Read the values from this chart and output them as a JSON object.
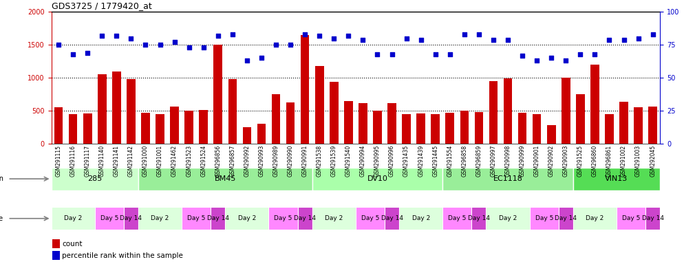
{
  "title": "GDS3725 / 1779420_at",
  "samples": [
    "GSM291115",
    "GSM291116",
    "GSM291117",
    "GSM291140",
    "GSM291141",
    "GSM291142",
    "GSM291000",
    "GSM291001",
    "GSM291462",
    "GSM291523",
    "GSM291524",
    "GSM296856",
    "GSM296857",
    "GSM290992",
    "GSM290993",
    "GSM290989",
    "GSM290990",
    "GSM290991",
    "GSM291538",
    "GSM291539",
    "GSM291540",
    "GSM290994",
    "GSM290995",
    "GSM290996",
    "GSM291435",
    "GSM291439",
    "GSM291445",
    "GSM291554",
    "GSM296858",
    "GSM296859",
    "GSM290997",
    "GSM290998",
    "GSM290999",
    "GSM290901",
    "GSM290902",
    "GSM290903",
    "GSM291525",
    "GSM296860",
    "GSM296861",
    "GSM291002",
    "GSM291003",
    "GSM292045"
  ],
  "counts": [
    560,
    450,
    460,
    1050,
    1100,
    980,
    470,
    450,
    570,
    500,
    510,
    1500,
    980,
    250,
    300,
    750,
    630,
    1650,
    1180,
    940,
    650,
    620,
    500,
    620,
    450,
    460,
    450,
    470,
    500,
    480,
    950,
    990,
    470,
    450,
    280,
    1000,
    750,
    1200,
    450,
    640,
    550,
    570
  ],
  "percentile_ranks": [
    75,
    68,
    69,
    82,
    82,
    80,
    75,
    75,
    77,
    73,
    73,
    82,
    83,
    63,
    65,
    75,
    75,
    83,
    82,
    80,
    82,
    79,
    68,
    68,
    80,
    79,
    68,
    68,
    83,
    83,
    79,
    79,
    67,
    63,
    65,
    63,
    68,
    68,
    79,
    79,
    80,
    83
  ],
  "strains": [
    {
      "name": "285",
      "start": 0,
      "end": 6,
      "color": "#ccffcc"
    },
    {
      "name": "BM45",
      "start": 6,
      "end": 18,
      "color": "#99ee99"
    },
    {
      "name": "DV10",
      "start": 18,
      "end": 27,
      "color": "#aaffaa"
    },
    {
      "name": "EC1118",
      "start": 27,
      "end": 36,
      "color": "#99ee99"
    },
    {
      "name": "VIN13",
      "start": 36,
      "end": 42,
      "color": "#55dd55"
    }
  ],
  "times": [
    {
      "label": "Day 2",
      "start": 0,
      "end": 3,
      "color": "#ddffdd"
    },
    {
      "label": "Day 5",
      "start": 3,
      "end": 5,
      "color": "#ff88ff"
    },
    {
      "label": "Day 14",
      "start": 5,
      "end": 6,
      "color": "#cc44cc"
    },
    {
      "label": "Day 2",
      "start": 6,
      "end": 9,
      "color": "#ddffdd"
    },
    {
      "label": "Day 5",
      "start": 9,
      "end": 11,
      "color": "#ff88ff"
    },
    {
      "label": "Day 14",
      "start": 11,
      "end": 12,
      "color": "#cc44cc"
    },
    {
      "label": "Day 2",
      "start": 12,
      "end": 15,
      "color": "#ddffdd"
    },
    {
      "label": "Day 5",
      "start": 15,
      "end": 17,
      "color": "#ff88ff"
    },
    {
      "label": "Day 14",
      "start": 17,
      "end": 18,
      "color": "#cc44cc"
    },
    {
      "label": "Day 2",
      "start": 18,
      "end": 21,
      "color": "#ddffdd"
    },
    {
      "label": "Day 5",
      "start": 21,
      "end": 23,
      "color": "#ff88ff"
    },
    {
      "label": "Day 14",
      "start": 23,
      "end": 24,
      "color": "#cc44cc"
    },
    {
      "label": "Day 2",
      "start": 24,
      "end": 27,
      "color": "#ddffdd"
    },
    {
      "label": "Day 5",
      "start": 27,
      "end": 29,
      "color": "#ff88ff"
    },
    {
      "label": "Day 14",
      "start": 29,
      "end": 30,
      "color": "#cc44cc"
    },
    {
      "label": "Day 2",
      "start": 30,
      "end": 33,
      "color": "#ddffdd"
    },
    {
      "label": "Day 5",
      "start": 33,
      "end": 35,
      "color": "#ff88ff"
    },
    {
      "label": "Day 14",
      "start": 35,
      "end": 36,
      "color": "#cc44cc"
    },
    {
      "label": "Day 2",
      "start": 36,
      "end": 39,
      "color": "#ddffdd"
    },
    {
      "label": "Day 5",
      "start": 39,
      "end": 41,
      "color": "#ff88ff"
    },
    {
      "label": "Day 14",
      "start": 41,
      "end": 42,
      "color": "#cc44cc"
    }
  ],
  "ylim_left": [
    0,
    2000
  ],
  "ylim_right": [
    0,
    100
  ],
  "yticks_left": [
    0,
    500,
    1000,
    1500,
    2000
  ],
  "yticks_right": [
    0,
    25,
    50,
    75,
    100
  ],
  "bar_color": "#cc0000",
  "dot_color": "#0000cc",
  "bg_color": "#ffffff",
  "grid_color": "#000000",
  "title_color": "#000000",
  "left_axis_color": "#cc0000",
  "right_axis_color": "#0000cc",
  "label_area_color": "#cccccc",
  "xticklabel_bg": "#dddddd"
}
